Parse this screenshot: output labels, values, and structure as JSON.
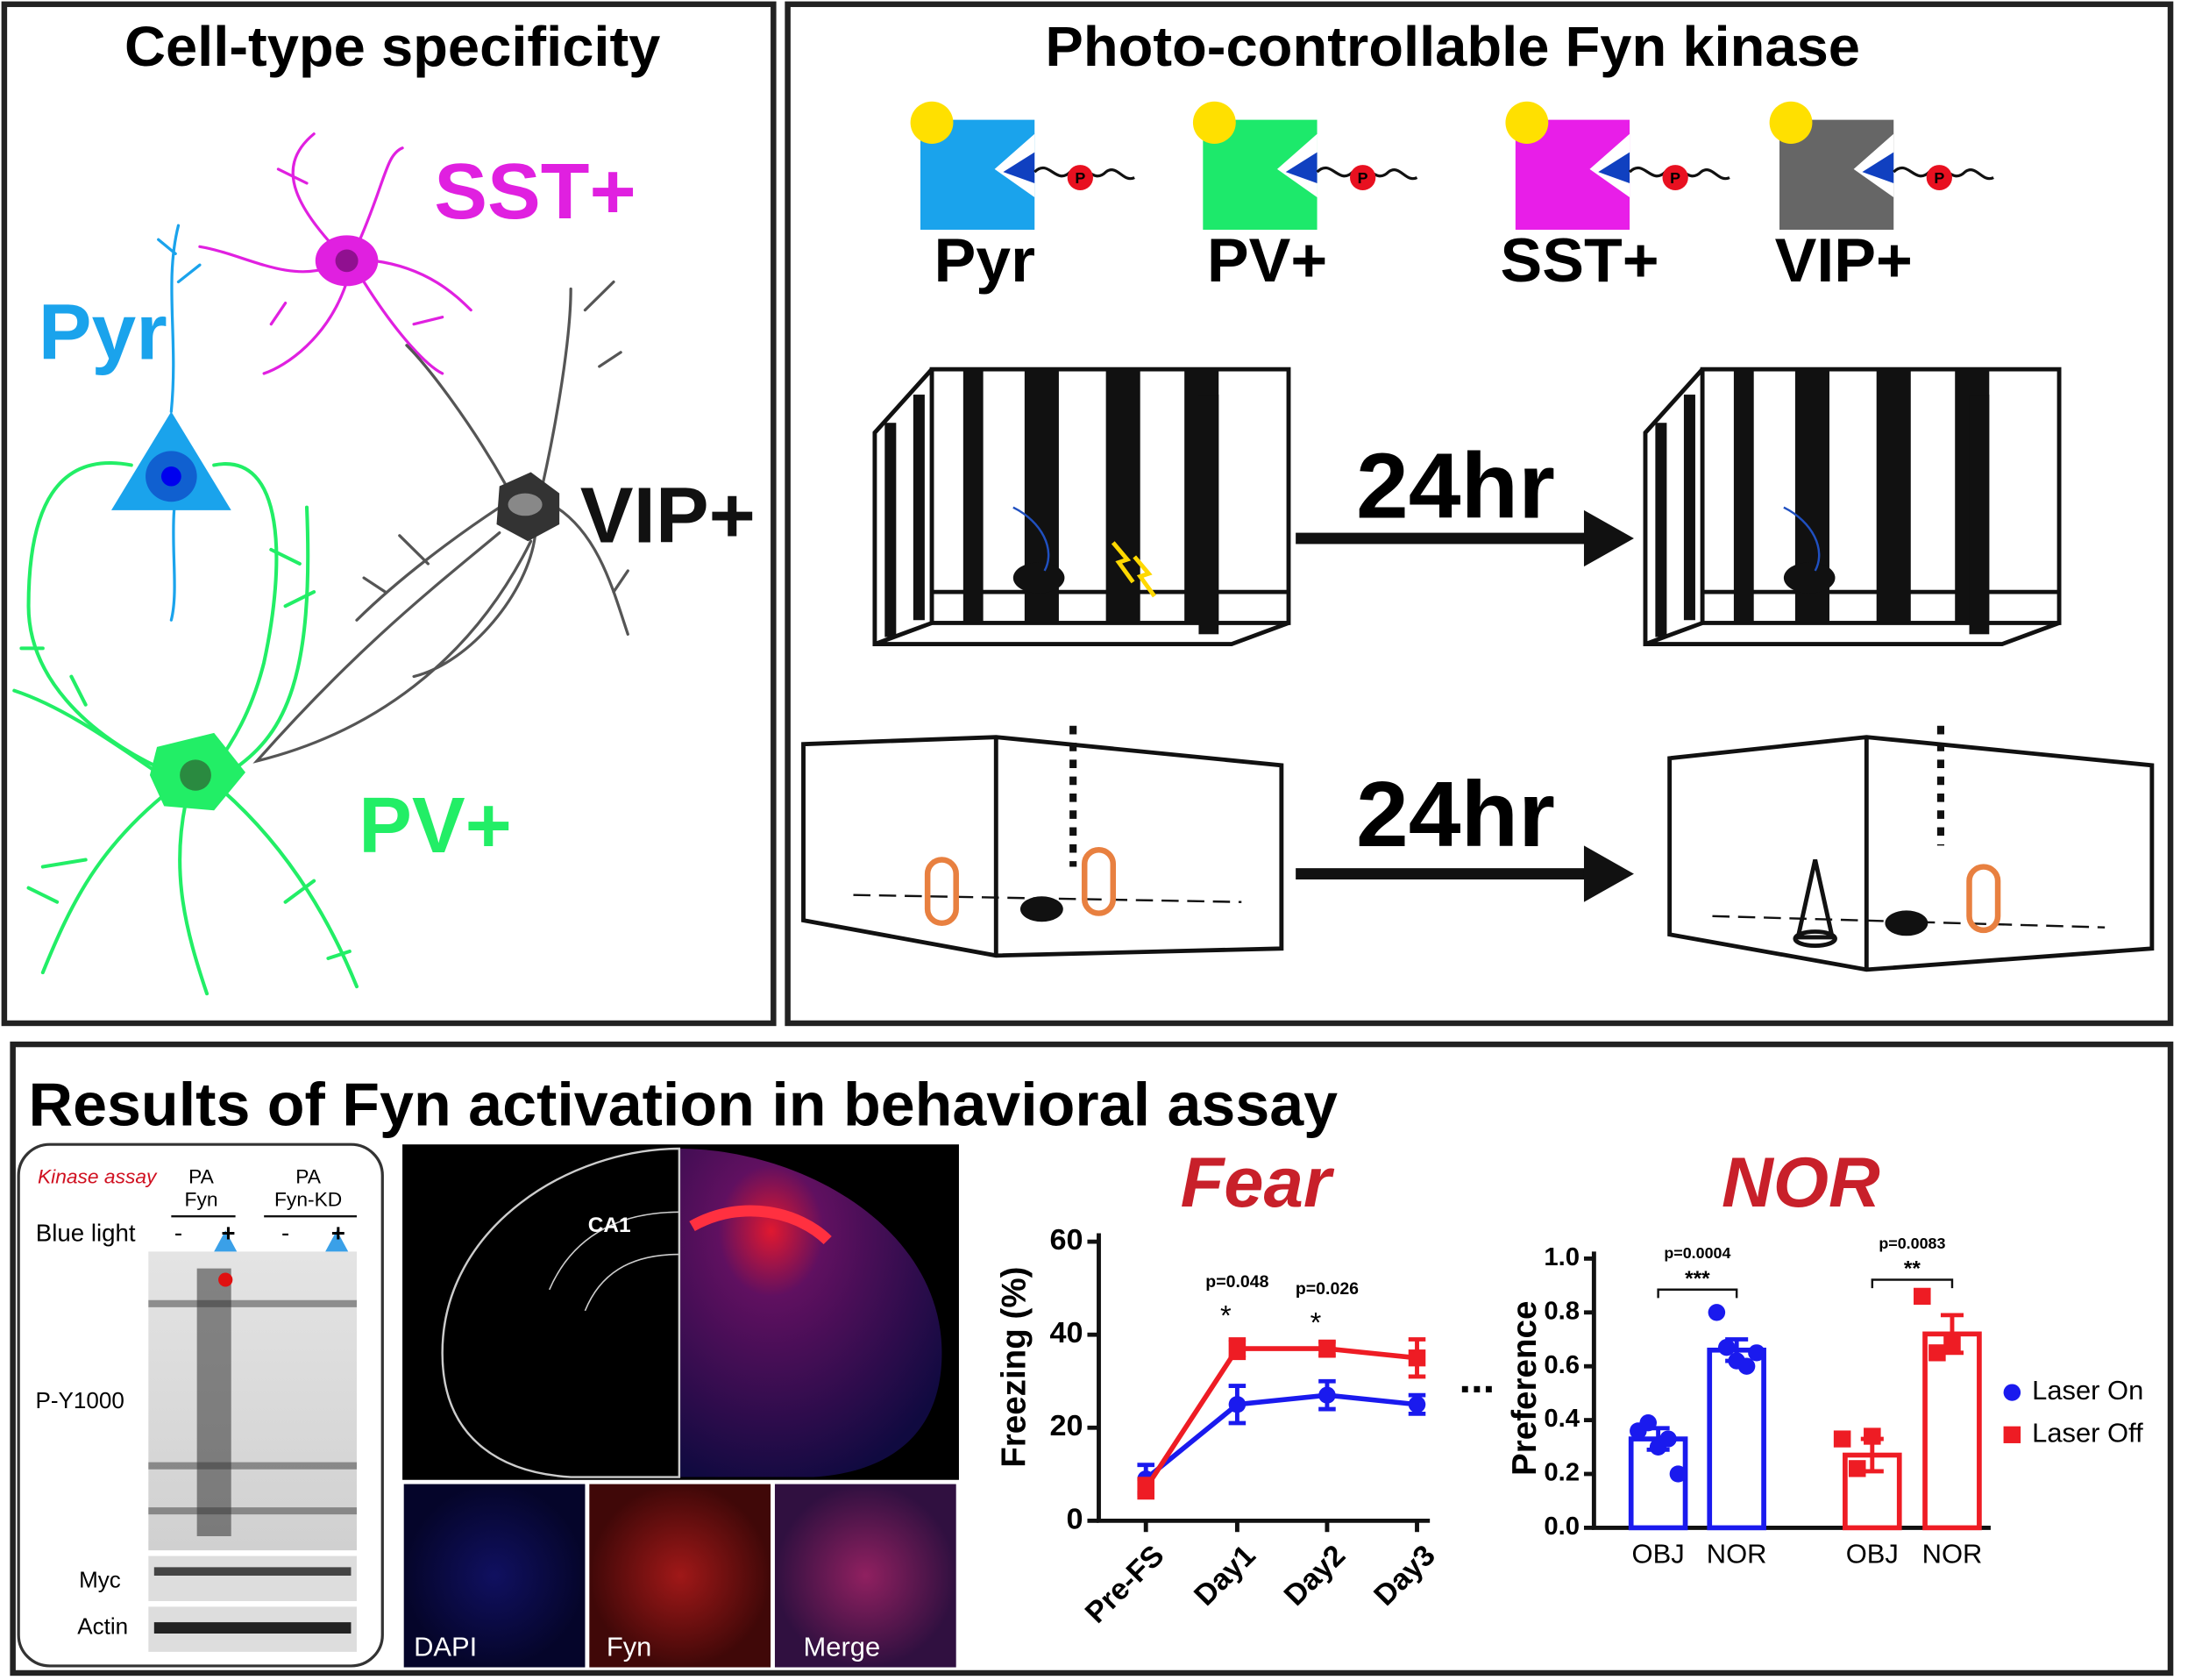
{
  "cell_panel": {
    "title": "Cell-type specificity",
    "neurons": [
      {
        "label": "SST+",
        "color": "#e020e0"
      },
      {
        "label": "Pyr",
        "color": "#1aa3ec"
      },
      {
        "label": "VIP+",
        "color": "#111111"
      },
      {
        "label": "PV+",
        "color": "#22ee66"
      }
    ]
  },
  "kinase_panel": {
    "title": "Photo-controllable Fyn kinase",
    "constructs": [
      {
        "label": "Pyr",
        "color": "#1aa3ec"
      },
      {
        "label": "PV+",
        "color": "#1de96b"
      },
      {
        "label": "SST+",
        "color": "#e81ee8"
      },
      {
        "label": "VIP+",
        "color": "#666666"
      }
    ],
    "phospho": "P",
    "intervals": [
      "24hr",
      "24hr"
    ]
  },
  "results": {
    "title": "Results of Fyn activation in behavioral assay",
    "blot": {
      "assay": "Kinase assay",
      "groups": [
        [
          "PA",
          "Fyn"
        ],
        [
          "PA",
          "Fyn-KD"
        ]
      ],
      "row_label": "Blue light",
      "conditions": [
        "-",
        "+",
        "-",
        "+"
      ],
      "bands": [
        "P-Y1000",
        "Myc",
        "Actin"
      ]
    },
    "imaging": {
      "region": "CA1",
      "channels": [
        "DAPI",
        "Fyn",
        "Merge"
      ]
    }
  },
  "charts": [
    {
      "type": "line",
      "title": "Fear",
      "y_label": "Freezing (%)",
      "categories": [
        "Pre-FS",
        "Day1",
        "Day2",
        "Day3"
      ],
      "ylim": [
        0,
        60
      ],
      "yticks": [
        0,
        20,
        40,
        60
      ],
      "series": [
        {
          "color": "#1a1aee",
          "values": [
            9,
            25,
            27,
            25
          ],
          "errors": [
            3,
            4,
            3,
            2
          ]
        },
        {
          "color": "#ee1c24",
          "values": [
            7,
            37,
            37,
            35
          ],
          "errors": [
            2,
            2,
            1.5,
            4
          ]
        }
      ],
      "annotations": [
        {
          "p": "p=0.048",
          "stars": "*"
        },
        {
          "p": "p=0.026",
          "stars": "*"
        }
      ],
      "continuation": "..."
    },
    {
      "type": "bar",
      "title": "NOR",
      "y_label": "Preference",
      "categories": [
        "OBJ",
        "NOR",
        "OBJ",
        "NOR"
      ],
      "ylim": [
        0,
        1
      ],
      "yticks": [
        {
          "value": 0,
          "label": "0.0"
        },
        {
          "value": 0.2,
          "label": "0.2"
        },
        {
          "value": 0.4,
          "label": "0.4"
        },
        {
          "value": 0.6,
          "label": "0.6"
        },
        {
          "value": 0.8,
          "label": "0.8"
        },
        {
          "value": 1,
          "label": "1.0"
        }
      ],
      "series": [
        {
          "name": "Laser On",
          "color": "#1a1aee",
          "values": [
            0.33,
            0.66
          ],
          "errors": [
            0.04,
            0.04
          ],
          "points": [
            [
              0.36,
              0.39,
              0.3,
              0.33,
              0.2
            ],
            [
              0.8,
              0.67,
              0.62,
              0.6,
              0.65
            ]
          ]
        },
        {
          "name": "Laser Off",
          "color": "#ee1c24",
          "values": [
            0.27,
            0.72
          ],
          "errors": [
            0.06,
            0.07
          ],
          "points": [
            [
              0.33,
              0.22,
              0.34
            ],
            [
              0.86,
              0.65,
              0.68
            ]
          ]
        }
      ],
      "annotations": [
        {
          "p": "p=0.0004",
          "stars": "***"
        },
        {
          "p": "p=0.0083",
          "stars": "**"
        }
      ]
    }
  ]
}
